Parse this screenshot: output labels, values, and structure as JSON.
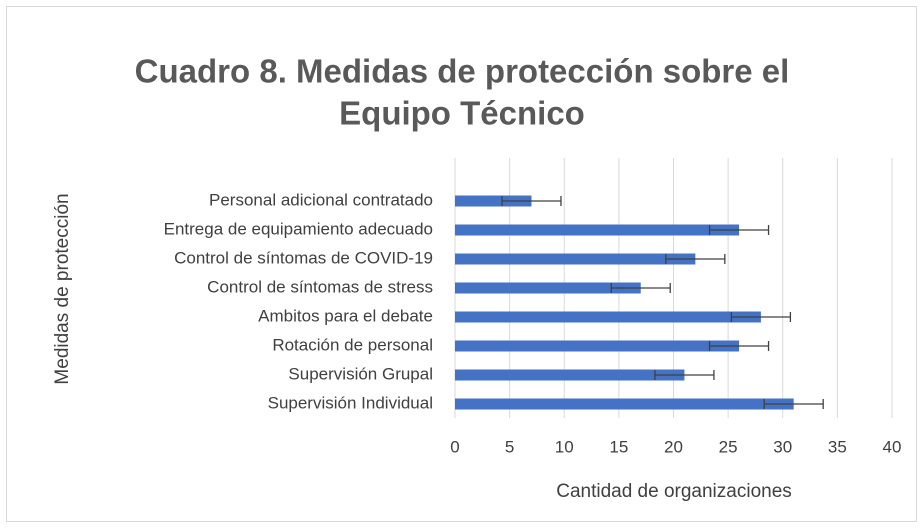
{
  "chart_data": {
    "type": "bar",
    "orientation": "horizontal",
    "title": [
      "Cuadro 8. Medidas de protección sobre el",
      "Equipo Técnico"
    ],
    "xlabel": "Cantidad de organizaciones",
    "ylabel": "Medidas de protección",
    "categories": [
      "Personal adicional contratado",
      "Entrega de equipamiento adecuado",
      "Control de síntomas de COVID-19",
      "Control de síntomas de stress",
      "Ambitos para el debate",
      "Rotación de personal",
      "Supervisión Grupal",
      "Supervisión Individual"
    ],
    "values": [
      7,
      26,
      22,
      17,
      28,
      26,
      21,
      31
    ],
    "errors": [
      2.7,
      2.7,
      2.7,
      2.7,
      2.7,
      2.7,
      2.7,
      2.7
    ],
    "color": "#4472c4",
    "xlim": [
      0,
      40
    ],
    "xticks": [
      0,
      5,
      10,
      15,
      20,
      25,
      30,
      35,
      40
    ],
    "grid": true
  }
}
